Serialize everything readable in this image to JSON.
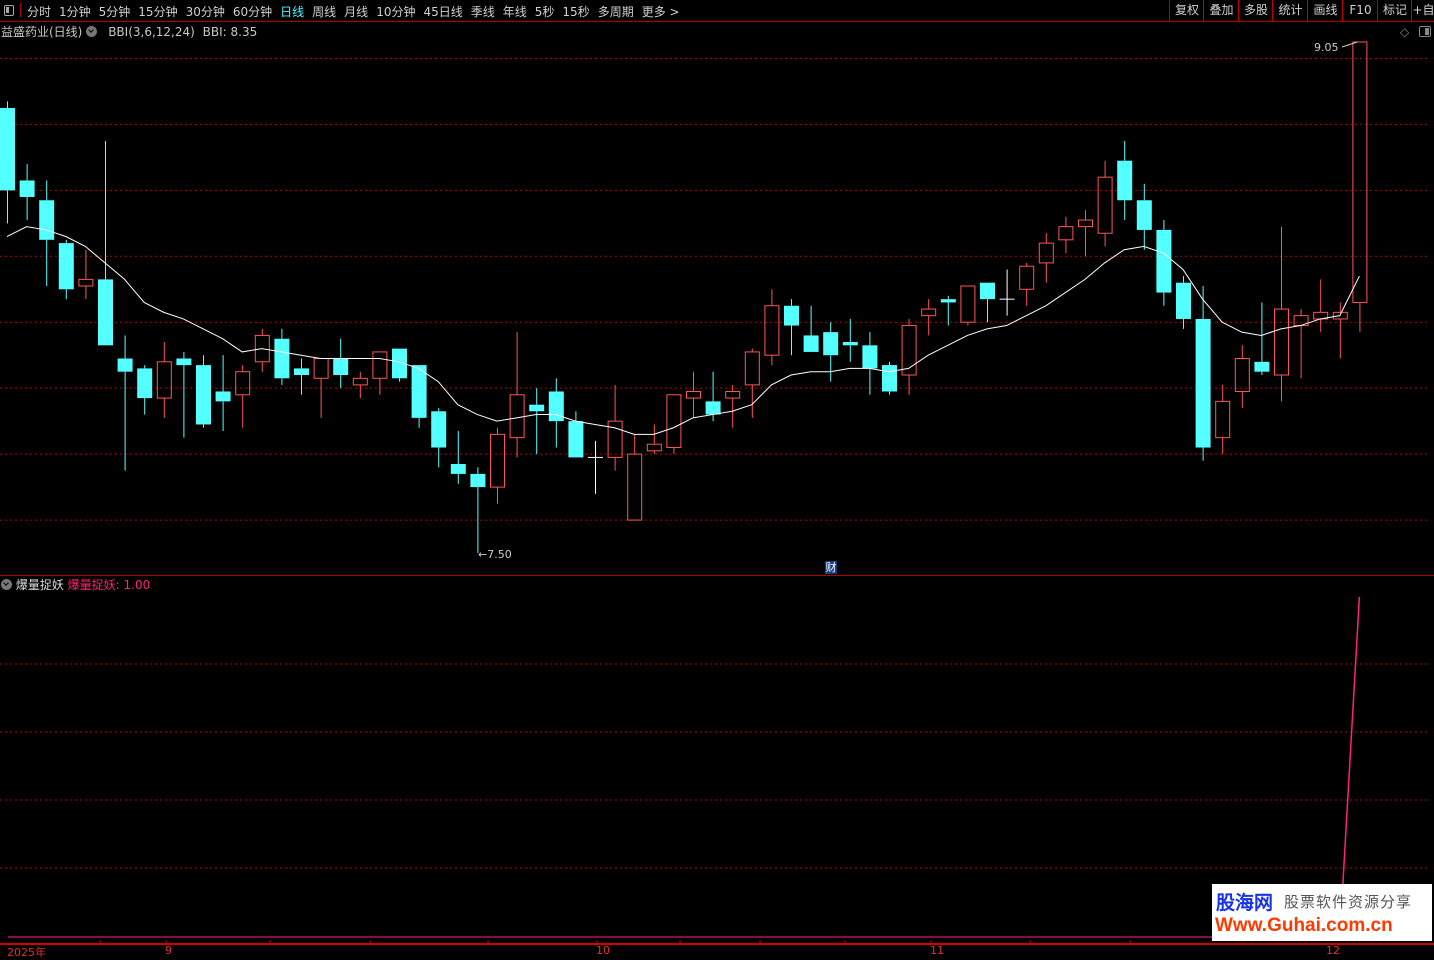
{
  "toolbar": {
    "periods": [
      "分时",
      "1分钟",
      "5分钟",
      "15分钟",
      "30分钟",
      "60分钟",
      "日线",
      "周线",
      "月线",
      "10分钟",
      "45日线",
      "季线",
      "年线",
      "5秒",
      "15秒",
      "多周期",
      "更多 >"
    ],
    "active_period": "日线",
    "right_buttons": [
      "复权",
      "叠加",
      "多股",
      "统计",
      "画线",
      "F10",
      "标记",
      "+自"
    ]
  },
  "main_panel": {
    "stock_name": "益盛药业(日线)",
    "indicator_name": "BBI(3,6,12,24)",
    "indicator_value": "BBI: 8.35",
    "max_label": "9.05",
    "min_label": "7.50",
    "badge": "财"
  },
  "sub_panel": {
    "name": "爆量捉妖",
    "value_label": "爆量捉妖: 1.00"
  },
  "x_axis": {
    "labels": [
      "2025年",
      "9",
      "10",
      "11",
      "12"
    ]
  },
  "watermark": {
    "logo": "股海网",
    "tagline": "股票软件资源分享",
    "url": "Www.Guhai.com.cn"
  },
  "colors": {
    "up": "#ff5555",
    "down": "#54ffff",
    "doji": "#ffffff",
    "bbi": "#ffffff",
    "grid": "#c00000",
    "indicator": "#ff2277",
    "active_tab": "#4ff4ff"
  },
  "icons": {
    "left": "panel-toggle-icon",
    "diamond": "diamond-icon",
    "toggle": "layout-toggle-icon"
  },
  "chart_data": {
    "type": "candlestick",
    "ylim": [
      7.5,
      9.05
    ],
    "grid_prices": [
      7.6,
      7.8,
      8.0,
      8.2,
      8.4,
      8.6,
      8.8,
      9.0
    ],
    "candles": [
      [
        8.85,
        8.87,
        8.5,
        8.6
      ],
      [
        8.63,
        8.68,
        8.51,
        8.58
      ],
      [
        8.57,
        8.63,
        8.31,
        8.45
      ],
      [
        8.44,
        8.45,
        8.27,
        8.3
      ],
      [
        8.31,
        8.42,
        8.27,
        8.33
      ],
      [
        8.33,
        8.75,
        8.13,
        8.13
      ],
      [
        8.09,
        8.16,
        7.75,
        8.05
      ],
      [
        8.06,
        8.07,
        7.92,
        7.97
      ],
      [
        7.97,
        8.14,
        7.91,
        8.08
      ],
      [
        8.09,
        8.11,
        7.85,
        8.07
      ],
      [
        8.07,
        8.1,
        7.88,
        7.89
      ],
      [
        7.99,
        8.1,
        7.87,
        7.96
      ],
      [
        7.98,
        8.07,
        7.88,
        8.05
      ],
      [
        8.08,
        8.18,
        8.05,
        8.16
      ],
      [
        8.15,
        8.18,
        8.01,
        8.03
      ],
      [
        8.06,
        8.09,
        7.98,
        8.04
      ],
      [
        8.03,
        8.09,
        7.91,
        8.09
      ],
      [
        8.09,
        8.15,
        8.0,
        8.04
      ],
      [
        8.01,
        8.05,
        7.97,
        8.03
      ],
      [
        8.03,
        8.11,
        7.98,
        8.11
      ],
      [
        8.12,
        8.12,
        8.02,
        8.03
      ],
      [
        8.07,
        8.07,
        7.88,
        7.91
      ],
      [
        7.93,
        7.94,
        7.76,
        7.82
      ],
      [
        7.77,
        7.87,
        7.71,
        7.74
      ],
      [
        7.74,
        7.76,
        7.5,
        7.7
      ],
      [
        7.7,
        7.88,
        7.65,
        7.86
      ],
      [
        7.85,
        8.17,
        7.79,
        7.98
      ],
      [
        7.95,
        8.0,
        7.8,
        7.93
      ],
      [
        7.99,
        8.03,
        7.82,
        7.9
      ],
      [
        7.9,
        7.93,
        7.79,
        7.79
      ],
      [
        7.79,
        7.84,
        7.68,
        7.79
      ],
      [
        7.79,
        8.01,
        7.75,
        7.9
      ],
      [
        7.6,
        7.86,
        7.6,
        7.8
      ],
      [
        7.81,
        7.89,
        7.8,
        7.83
      ],
      [
        7.82,
        7.98,
        7.8,
        7.98
      ],
      [
        7.97,
        8.05,
        7.91,
        7.99
      ],
      [
        7.96,
        8.05,
        7.9,
        7.92
      ],
      [
        7.97,
        8.01,
        7.88,
        7.99
      ],
      [
        8.01,
        8.12,
        7.91,
        8.11
      ],
      [
        8.1,
        8.3,
        8.07,
        8.25
      ],
      [
        8.25,
        8.27,
        8.1,
        8.19
      ],
      [
        8.16,
        8.25,
        8.11,
        8.11
      ],
      [
        8.17,
        8.2,
        8.02,
        8.1
      ],
      [
        8.14,
        8.21,
        8.08,
        8.13
      ],
      [
        8.13,
        8.17,
        7.98,
        8.06
      ],
      [
        8.07,
        8.08,
        7.98,
        7.99
      ],
      [
        8.04,
        8.21,
        7.98,
        8.19
      ],
      [
        8.22,
        8.27,
        8.16,
        8.24
      ],
      [
        8.27,
        8.28,
        8.19,
        8.26
      ],
      [
        8.2,
        8.31,
        8.19,
        8.31
      ],
      [
        8.32,
        8.32,
        8.2,
        8.27
      ],
      [
        8.27,
        8.36,
        8.22,
        8.27
      ],
      [
        8.3,
        8.38,
        8.25,
        8.37
      ],
      [
        8.38,
        8.47,
        8.32,
        8.44
      ],
      [
        8.45,
        8.52,
        8.41,
        8.49
      ],
      [
        8.49,
        8.54,
        8.4,
        8.51
      ],
      [
        8.47,
        8.69,
        8.43,
        8.64
      ],
      [
        8.69,
        8.75,
        8.51,
        8.57
      ],
      [
        8.57,
        8.62,
        8.42,
        8.48
      ],
      [
        8.48,
        8.51,
        8.25,
        8.29
      ],
      [
        8.32,
        8.34,
        8.18,
        8.21
      ],
      [
        8.21,
        8.31,
        7.78,
        7.82
      ],
      [
        7.85,
        8.01,
        7.8,
        7.96
      ],
      [
        7.99,
        8.13,
        7.94,
        8.09
      ],
      [
        8.08,
        8.26,
        8.04,
        8.05
      ],
      [
        8.04,
        8.49,
        7.96,
        8.24
      ],
      [
        8.19,
        8.24,
        8.03,
        8.22
      ],
      [
        8.21,
        8.33,
        8.17,
        8.23
      ],
      [
        8.21,
        8.26,
        8.09,
        8.23
      ],
      [
        8.26,
        9.05,
        8.17,
        9.05
      ]
    ],
    "candle_fields": [
      "open",
      "high",
      "low",
      "close"
    ],
    "bbi": [
      8.46,
      8.49,
      8.48,
      8.46,
      8.43,
      8.38,
      8.33,
      8.26,
      8.23,
      8.21,
      8.18,
      8.15,
      8.11,
      8.12,
      8.11,
      8.1,
      8.09,
      8.09,
      8.09,
      8.09,
      8.08,
      8.06,
      8.02,
      7.95,
      7.92,
      7.9,
      7.91,
      7.92,
      7.92,
      7.9,
      7.89,
      7.88,
      7.86,
      7.86,
      7.88,
      7.91,
      7.92,
      7.93,
      7.95,
      8.01,
      8.04,
      8.05,
      8.05,
      8.06,
      8.06,
      8.05,
      8.06,
      8.1,
      8.13,
      8.16,
      8.18,
      8.19,
      8.22,
      8.25,
      8.29,
      8.33,
      8.38,
      8.42,
      8.43,
      8.41,
      8.36,
      8.27,
      8.2,
      8.17,
      8.16,
      8.18,
      8.19,
      8.21,
      8.22,
      8.34
    ],
    "indicator": {
      "ylim": [
        0,
        1
      ],
      "last_value": 1,
      "values_before_last": 0
    }
  }
}
